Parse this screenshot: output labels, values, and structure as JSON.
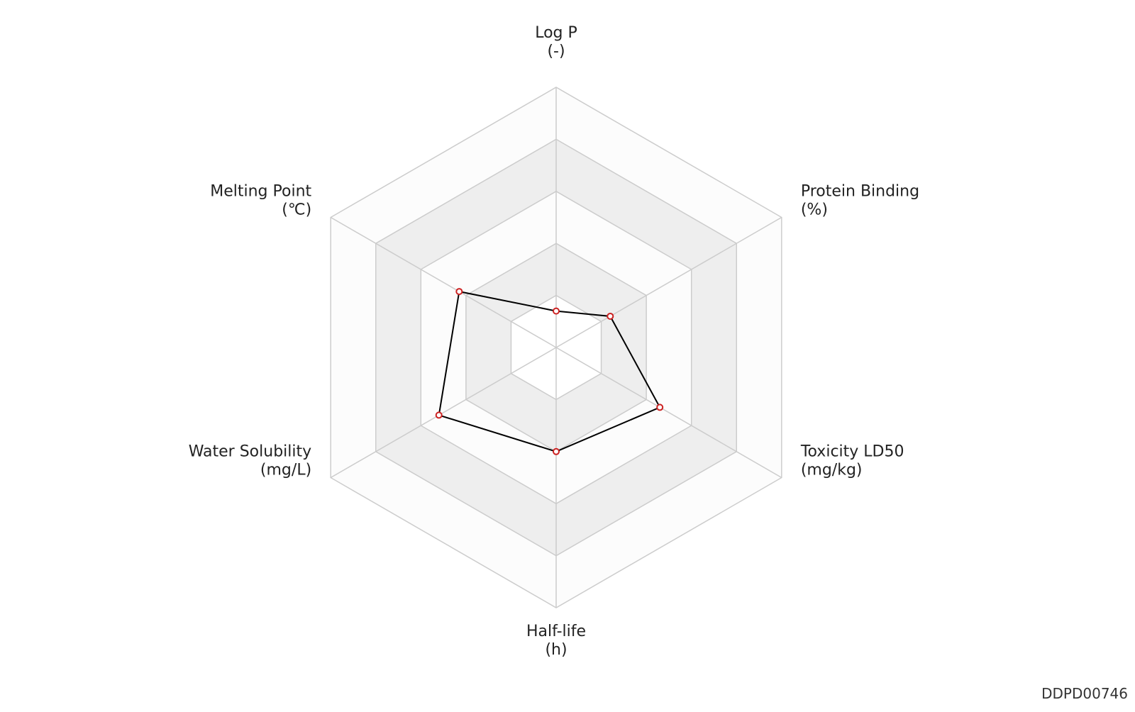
{
  "chart_data": {
    "type": "radar",
    "categories": [
      "Log P",
      "Protein Binding",
      "Toxicity LD50",
      "Half-life",
      "Water Solubility",
      "Melting Point"
    ],
    "units": [
      "(-)",
      "(%)",
      "(mg/kg)",
      "(h)",
      "(mg/L)",
      "(℃)"
    ],
    "values": [
      14,
      24,
      46,
      40,
      52,
      43
    ],
    "rlim": [
      0,
      100
    ],
    "rticks": [
      0,
      20,
      40,
      60,
      80,
      100
    ],
    "line_color": "#000000",
    "point_color": "#cc2222",
    "grid": true
  },
  "watermark": "DDPD00746"
}
